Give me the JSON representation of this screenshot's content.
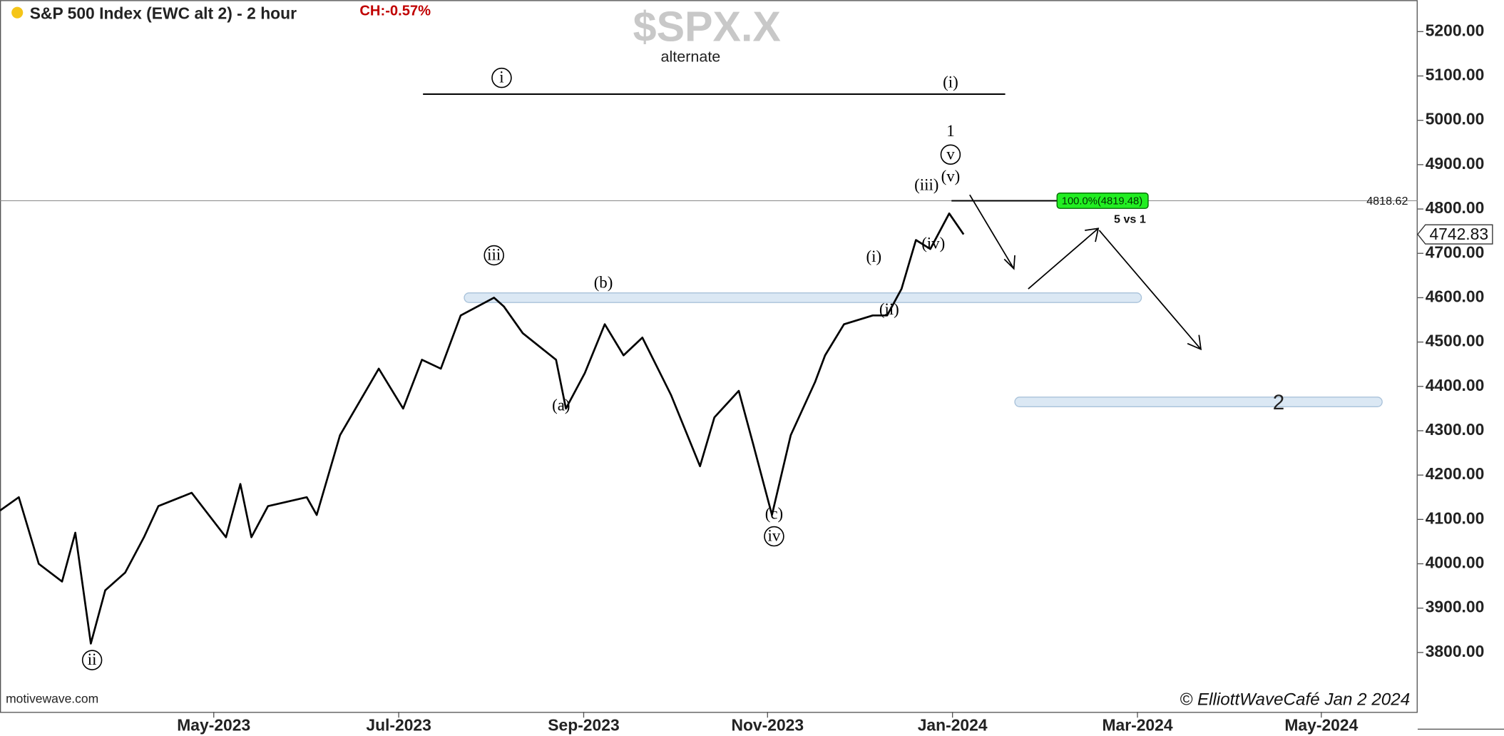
{
  "chart_data": {
    "type": "line",
    "title": "S&P 500 Index (EWC alt 2) - 2 hour",
    "change": "CH:-0.57%",
    "symbol": "$SPX.X",
    "subtitle": "alternate",
    "source": "motivewave.com",
    "credit": "© ElliottWaveCafé Jan 2 2024",
    "color": "#000000",
    "x": [
      2023.14,
      2023.157,
      2023.175,
      2023.196,
      2023.208,
      2023.222,
      2023.235,
      2023.253,
      2023.27,
      2023.283,
      2023.313,
      2023.344,
      2023.357,
      2023.367,
      2023.382,
      2023.417,
      2023.426,
      2023.447,
      2023.482,
      2023.504,
      2023.521,
      2023.538,
      2023.556,
      2023.586,
      2023.595,
      2023.612,
      2023.642,
      2023.651,
      2023.668,
      2023.686,
      2023.703,
      2023.72,
      2023.738,
      2023.746,
      2023.772,
      2023.785,
      2023.807,
      2023.82,
      2023.837,
      2023.854,
      2023.876,
      2023.885,
      2023.902,
      2023.928,
      2023.941,
      2023.954,
      2023.967,
      2023.98,
      2023.997,
      2024.01
    ],
    "values": [
      4120,
      4150,
      4000,
      3960,
      4070,
      3820,
      3940,
      3980,
      4060,
      4130,
      4160,
      4060,
      4180,
      4060,
      4130,
      4150,
      4110,
      4290,
      4440,
      4350,
      4460,
      4440,
      4560,
      4600,
      4580,
      4520,
      4460,
      4350,
      4430,
      4540,
      4470,
      4510,
      4420,
      4380,
      4220,
      4330,
      4390,
      4270,
      4110,
      4290,
      4410,
      4470,
      4540,
      4560,
      4560,
      4620,
      4730,
      4710,
      4790,
      4742.83
    ],
    "xlim": [
      2023.14,
      2024.42
    ],
    "xticks": [
      {
        "value": 2023.333,
        "label": "May-2023"
      },
      {
        "value": 2023.5,
        "label": "Jul-2023"
      },
      {
        "value": 2023.667,
        "label": "Sep-2023"
      },
      {
        "value": 2023.833,
        "label": "Nov-2023"
      },
      {
        "value": 2024.0,
        "label": "Jan-2024"
      },
      {
        "value": 2024.167,
        "label": "Mar-2024"
      },
      {
        "value": 2024.333,
        "label": "May-2024"
      }
    ],
    "ylim": [
      3666,
      5271
    ],
    "yticks": [
      {
        "value": 3800,
        "label": "3800.00"
      },
      {
        "value": 3900,
        "label": "3900.00"
      },
      {
        "value": 4000,
        "label": "4000.00"
      },
      {
        "value": 4100,
        "label": "4100.00"
      },
      {
        "value": 4200,
        "label": "4200.00"
      },
      {
        "value": 4300,
        "label": "4300.00"
      },
      {
        "value": 4400,
        "label": "4400.00"
      },
      {
        "value": 4500,
        "label": "4500.00"
      },
      {
        "value": 4600,
        "label": "4600.00"
      },
      {
        "value": 4700,
        "label": "4700.00"
      },
      {
        "value": 4800,
        "label": "4800.00"
      },
      {
        "value": 4900,
        "label": "4900.00"
      },
      {
        "value": 5000,
        "label": "5000.00"
      },
      {
        "value": 5100,
        "label": "5100.00"
      },
      {
        "value": 5200,
        "label": "5200.00"
      }
    ],
    "level_line": 4818.62,
    "fib_label": "100.0%(4819.48)",
    "fib_note": "5 vs 1",
    "zones": [
      4600,
      4365
    ],
    "target_label": "2",
    "wave_labels": [
      "i",
      "(i)",
      "1",
      "v",
      "(v)",
      "(iii)",
      "(iv)",
      "(i)",
      "(ii)",
      "iii",
      "(b)",
      "(a)",
      "(c)",
      "iv",
      "ii"
    ]
  }
}
